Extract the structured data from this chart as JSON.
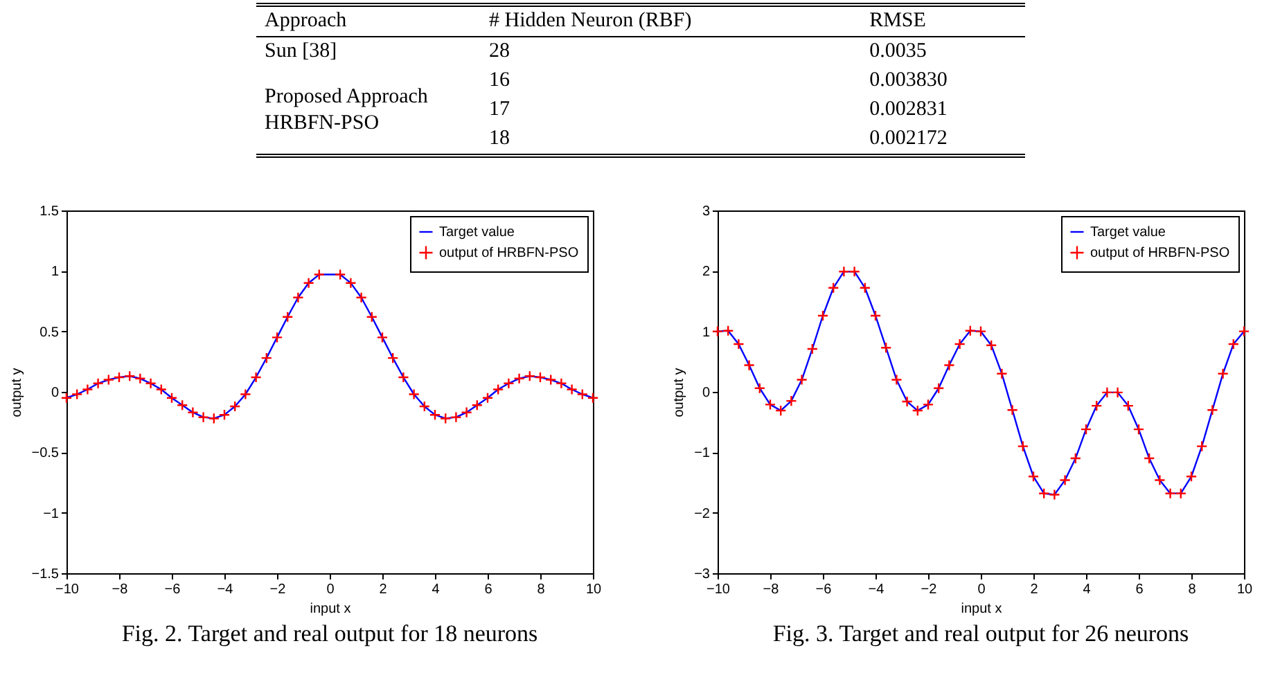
{
  "chart_data": [
    {
      "type": "other",
      "categories": [
        "Approach",
        "# Hidden Neuron (RBF)",
        "RMSE"
      ],
      "annotations": [
        "Sun [38]",
        "28",
        "0.0035",
        "Proposed Approach HRBFN-PSO",
        "16",
        "0.003830",
        "17",
        "0.002831",
        "18",
        "0.002172"
      ]
    },
    {
      "type": "line",
      "xlabel": "input x",
      "ylabel": "output y",
      "annotations": [
        "Fig. 2. Target and real output for 18 neurons"
      ],
      "xlim": [
        -10,
        10
      ],
      "xticks": [
        -10,
        -8,
        -6,
        -4,
        -2,
        0,
        2,
        4,
        6,
        8,
        10
      ],
      "ylim": [
        -1.5,
        1.5
      ],
      "yticks": [
        -1.5,
        -1,
        -0.5,
        0,
        0.5,
        1,
        1.5
      ],
      "grid": false,
      "legend": "top right",
      "x": [
        -10,
        -9.6,
        -9.2,
        -8.8,
        -8.4,
        -8,
        -7.6,
        -7.2,
        -6.8,
        -6.4,
        -6,
        -5.6,
        -5.2,
        -4.8,
        -4.4,
        -4,
        -3.6,
        -3.2,
        -2.8,
        -2.4,
        -2,
        -1.6,
        -1.2,
        -0.8,
        -0.4,
        0.4,
        0.8,
        1.2,
        1.6,
        2,
        2.4,
        2.8,
        3.2,
        3.6,
        4,
        4.4,
        4.8,
        5.2,
        5.6,
        6,
        6.4,
        6.8,
        7.2,
        7.6,
        8,
        8.4,
        8.8,
        9.2,
        9.6,
        10
      ],
      "series": [
        {
          "name": "Target value",
          "type": "line",
          "color": "#0000ff",
          "marker": "none",
          "values": [
            -0.05,
            -0.02,
            0.02,
            0.07,
            0.1,
            0.12,
            0.13,
            0.11,
            0.07,
            0.02,
            -0.05,
            -0.11,
            -0.17,
            -0.21,
            -0.22,
            -0.19,
            -0.12,
            -0.02,
            0.12,
            0.28,
            0.45,
            0.62,
            0.78,
            0.9,
            0.97,
            0.97,
            0.9,
            0.78,
            0.62,
            0.45,
            0.28,
            0.12,
            -0.02,
            -0.12,
            -0.19,
            -0.22,
            -0.21,
            -0.17,
            -0.11,
            -0.05,
            0.02,
            0.07,
            0.11,
            0.13,
            0.12,
            0.1,
            0.07,
            0.02,
            -0.02,
            -0.05
          ]
        },
        {
          "name": "output of HRBFN-PSO",
          "type": "scatter",
          "color": "#ff0000",
          "marker": "cross",
          "values": [
            -0.05,
            -0.02,
            0.02,
            0.07,
            0.1,
            0.12,
            0.13,
            0.11,
            0.07,
            0.02,
            -0.05,
            -0.11,
            -0.17,
            -0.21,
            -0.22,
            -0.19,
            -0.12,
            -0.02,
            0.12,
            0.28,
            0.45,
            0.62,
            0.78,
            0.9,
            0.97,
            0.97,
            0.9,
            0.78,
            0.62,
            0.45,
            0.28,
            0.12,
            -0.02,
            -0.12,
            -0.19,
            -0.22,
            -0.21,
            -0.17,
            -0.11,
            -0.05,
            0.02,
            0.07,
            0.11,
            0.13,
            0.12,
            0.1,
            0.07,
            0.02,
            -0.02,
            -0.05
          ]
        }
      ]
    },
    {
      "type": "line",
      "xlabel": "input x",
      "ylabel": "output y",
      "annotations": [
        "Fig. 3. Target and real output for 26 neurons"
      ],
      "xlim": [
        -10,
        10
      ],
      "xticks": [
        -10,
        -8,
        -6,
        -4,
        -2,
        0,
        2,
        4,
        6,
        8,
        10
      ],
      "ylim": [
        -3,
        3
      ],
      "yticks": [
        -3,
        -2,
        -1,
        0,
        1,
        2,
        3
      ],
      "grid": false,
      "legend": "top right",
      "x": [
        -10,
        -9.6,
        -9.2,
        -8.8,
        -8.4,
        -8,
        -7.6,
        -7.2,
        -6.8,
        -6.4,
        -6,
        -5.6,
        -5.2,
        -4.8,
        -4.4,
        -4,
        -3.6,
        -3.2,
        -2.8,
        -2.4,
        -2,
        -1.6,
        -1.2,
        -0.8,
        -0.4,
        0,
        0.4,
        0.8,
        1.2,
        1.6,
        2,
        2.4,
        2.8,
        3.2,
        3.6,
        4,
        4.4,
        4.8,
        5.2,
        5.6,
        6,
        6.4,
        6.8,
        7.2,
        7.6,
        8,
        8.4,
        8.8,
        9.2,
        9.6,
        10
      ],
      "series": [
        {
          "name": "Target value",
          "type": "line",
          "color": "#0000ff",
          "marker": "none",
          "values": [
            1.0,
            1.01,
            0.79,
            0.44,
            0.06,
            -0.21,
            -0.31,
            -0.15,
            0.2,
            0.71,
            1.26,
            1.72,
            1.99,
            1.99,
            1.72,
            1.26,
            0.73,
            0.2,
            -0.16,
            -0.31,
            -0.21,
            0.06,
            0.44,
            0.79,
            1.01,
            1.0,
            0.77,
            0.3,
            -0.3,
            -0.9,
            -1.4,
            -1.68,
            -1.7,
            -1.46,
            -1.1,
            -0.62,
            -0.23,
            -0.01,
            -0.01,
            -0.23,
            -0.62,
            -1.1,
            -1.46,
            -1.68,
            -1.68,
            -1.4,
            -0.9,
            -0.3,
            0.3,
            0.79,
            1.0
          ]
        },
        {
          "name": "output of HRBFN-PSO",
          "type": "scatter",
          "color": "#ff0000",
          "marker": "cross",
          "values": [
            1.0,
            1.01,
            0.79,
            0.44,
            0.06,
            -0.21,
            -0.31,
            -0.15,
            0.2,
            0.71,
            1.26,
            1.72,
            1.99,
            1.99,
            1.72,
            1.26,
            0.73,
            0.2,
            -0.16,
            -0.31,
            -0.21,
            0.06,
            0.44,
            0.79,
            1.01,
            1.0,
            0.77,
            0.3,
            -0.3,
            -0.9,
            -1.4,
            -1.68,
            -1.7,
            -1.46,
            -1.1,
            -0.62,
            -0.23,
            -0.01,
            -0.01,
            -0.23,
            -0.62,
            -1.1,
            -1.46,
            -1.68,
            -1.68,
            -1.4,
            -0.9,
            -0.3,
            0.3,
            0.79,
            1.0
          ]
        }
      ]
    }
  ]
}
